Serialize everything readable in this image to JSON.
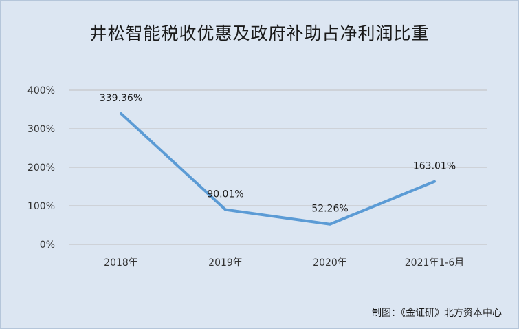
{
  "chart_data": {
    "type": "line",
    "title": "井松智能税收优惠及政府补助占净利润比重",
    "categories": [
      "2018年",
      "2019年",
      "2020年",
      "2021年1-6月"
    ],
    "series": [
      {
        "values": [
          339.36,
          90.01,
          52.26,
          163.01
        ],
        "labels": [
          "339.36%",
          "90.01%",
          "52.26%",
          "163.01%"
        ],
        "color": "#5b9bd5"
      }
    ],
    "ylim": [
      0,
      400
    ],
    "yticks": [
      "0%",
      "100%",
      "200%",
      "300%",
      "400%"
    ],
    "ytick_values": [
      0,
      100,
      200,
      300,
      400
    ],
    "grid": true,
    "legend": "none"
  },
  "source_note": "制图：《金证研》北方资本中心",
  "colors": {
    "background": "#dce6f2",
    "gridline": "#bfbfbf",
    "line": "#5b9bd5"
  }
}
